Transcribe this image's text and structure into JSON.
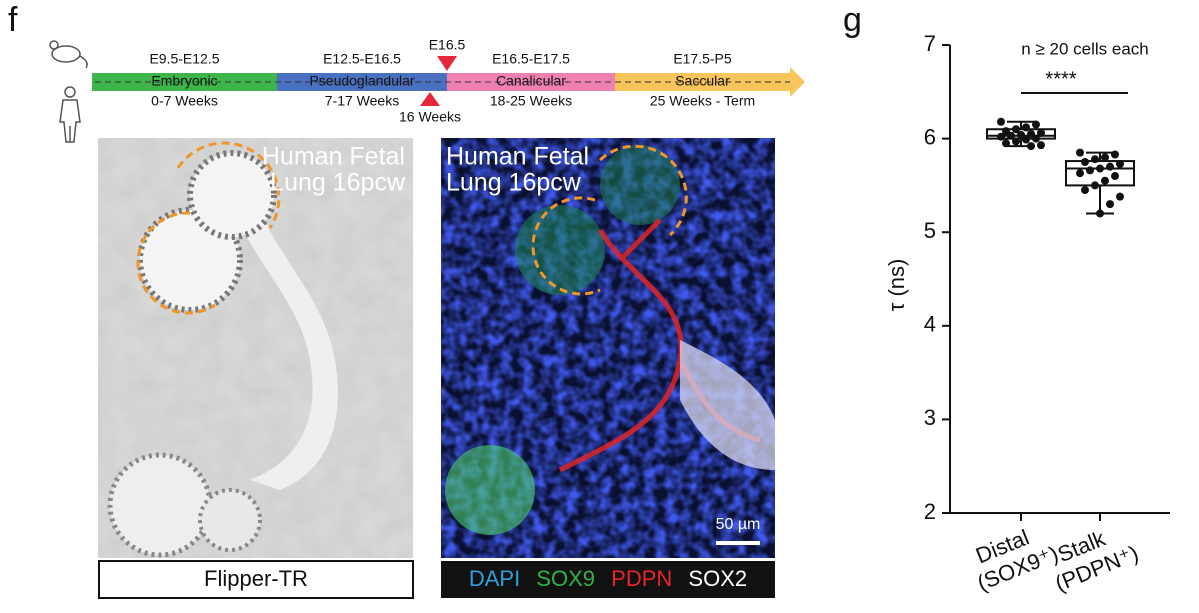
{
  "panel_f": {
    "label": "f",
    "timeline": {
      "phases": [
        {
          "range": "E9.5-E12.5",
          "name": "Embryonic",
          "weeks": "0-7 Weeks",
          "color": "#3db54a"
        },
        {
          "range": "E12.5-E16.5",
          "name": "Pseudoglandular",
          "weeks": "7-17 Weeks",
          "color": "#4a70c0"
        },
        {
          "range": "E16.5-E17.5",
          "name": "Canalicular",
          "weeks": "18-25 Weeks",
          "color": "#ef80b2"
        },
        {
          "range": "E17.5-P5",
          "name": "Saccular",
          "weeks": "25 Weeks - Term",
          "color": "#f7c55a"
        }
      ],
      "mouse_marker": "E16.5",
      "human_marker": "16 Weeks"
    },
    "images": [
      {
        "overlay": [
          "Human Fetal",
          "Lung 16pcw"
        ],
        "caption": "Flipper-TR"
      },
      {
        "overlay": [
          "Human Fetal",
          "Lung 16pcw"
        ],
        "scale_bar": "50 µm",
        "caption": [
          {
            "text": "DAPI",
            "color": "#2f9fe0"
          },
          {
            "text": "SOX9",
            "color": "#2fb34a"
          },
          {
            "text": "PDPN",
            "color": "#e8262a"
          },
          {
            "text": "SOX2",
            "color": "#ffffff"
          }
        ]
      }
    ]
  },
  "chart_data": {
    "type": "box",
    "label": "g",
    "annotation": "n ≥ 20 cells each",
    "significance": "****",
    "ylabel": "τ (ns)",
    "categories": [
      [
        "Distal",
        "(SOX9⁺)"
      ],
      [
        "Stalk",
        "(PDPN⁺)"
      ]
    ],
    "ylim": [
      2,
      7
    ],
    "yticks": [
      2,
      3,
      4,
      5,
      6,
      7
    ],
    "boxes": [
      {
        "min": 5.92,
        "q1": 6.0,
        "median": 6.03,
        "q3": 6.1,
        "max": 6.18,
        "points": [
          6.18,
          6.15,
          6.12,
          6.1,
          6.08,
          6.06,
          6.05,
          6.04,
          6.03,
          6.02,
          6.0,
          5.99,
          5.97,
          5.95,
          5.93,
          5.92
        ]
      },
      {
        "min": 5.2,
        "q1": 5.5,
        "median": 5.68,
        "q3": 5.76,
        "max": 5.85,
        "points": [
          5.85,
          5.83,
          5.8,
          5.78,
          5.75,
          5.73,
          5.7,
          5.68,
          5.66,
          5.63,
          5.6,
          5.55,
          5.5,
          5.45,
          5.38,
          5.3,
          5.2
        ]
      }
    ]
  }
}
